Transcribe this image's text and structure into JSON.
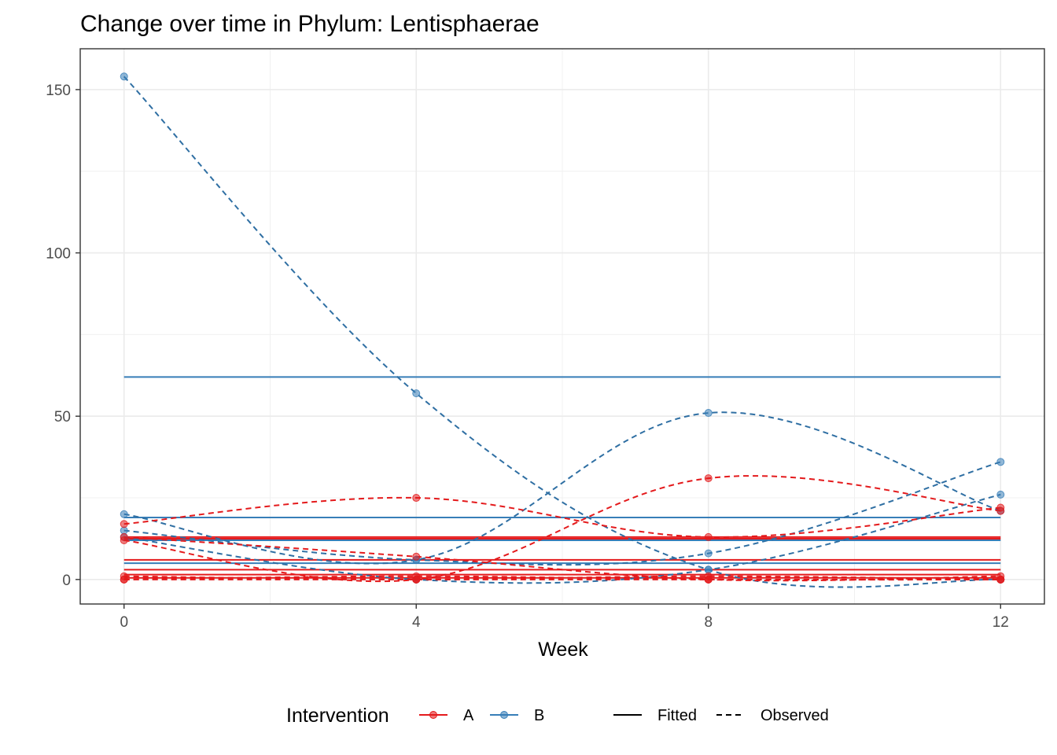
{
  "chart_data": {
    "type": "line",
    "title": "Change over time in Phylum: Lentisphaerae",
    "xlabel": "Week",
    "ylabel": "",
    "x_ticks": [
      0,
      4,
      8,
      12
    ],
    "y_ticks": [
      0,
      50,
      100,
      150
    ],
    "xlim": [
      -0.6,
      12.6
    ],
    "ylim": [
      -7.5,
      162.5
    ],
    "grid": true,
    "legend": {
      "position": "bottom",
      "title": "Intervention",
      "groups": [
        {
          "name": "A",
          "color": "#e41a1c"
        },
        {
          "name": "B",
          "color": "#377eb8"
        }
      ],
      "line_types": [
        {
          "name": "Fitted",
          "dash": "solid"
        },
        {
          "name": "Observed",
          "dash": "dashed"
        }
      ]
    },
    "x": [
      0,
      4,
      8,
      12
    ],
    "observed_series": [
      {
        "group": "B",
        "values": [
          154,
          57,
          3,
          0
        ]
      },
      {
        "group": "B",
        "values": [
          20,
          6,
          51,
          21
        ]
      },
      {
        "group": "B",
        "values": [
          15,
          6,
          8,
          36
        ]
      },
      {
        "group": "B",
        "values": [
          13,
          0,
          3,
          26
        ]
      },
      {
        "group": "A",
        "values": [
          17,
          25,
          13,
          22
        ]
      },
      {
        "group": "A",
        "values": [
          13,
          7,
          0,
          1
        ]
      },
      {
        "group": "A",
        "values": [
          12,
          0,
          31,
          21
        ]
      },
      {
        "group": "A",
        "values": [
          0,
          1,
          0,
          0
        ]
      },
      {
        "group": "A",
        "values": [
          0,
          0,
          0,
          0
        ]
      },
      {
        "group": "A",
        "values": [
          1,
          0,
          1,
          0
        ]
      }
    ],
    "fitted_lines": [
      {
        "group": "B",
        "value": 62
      },
      {
        "group": "B",
        "value": 19
      },
      {
        "group": "B",
        "value": 12
      },
      {
        "group": "B",
        "value": 5
      },
      {
        "group": "A",
        "value": 13
      },
      {
        "group": "A",
        "value": 12.5
      },
      {
        "group": "A",
        "value": 6
      },
      {
        "group": "A",
        "value": 3
      },
      {
        "group": "A",
        "value": 1.5
      },
      {
        "group": "A",
        "value": 0.5
      }
    ]
  }
}
